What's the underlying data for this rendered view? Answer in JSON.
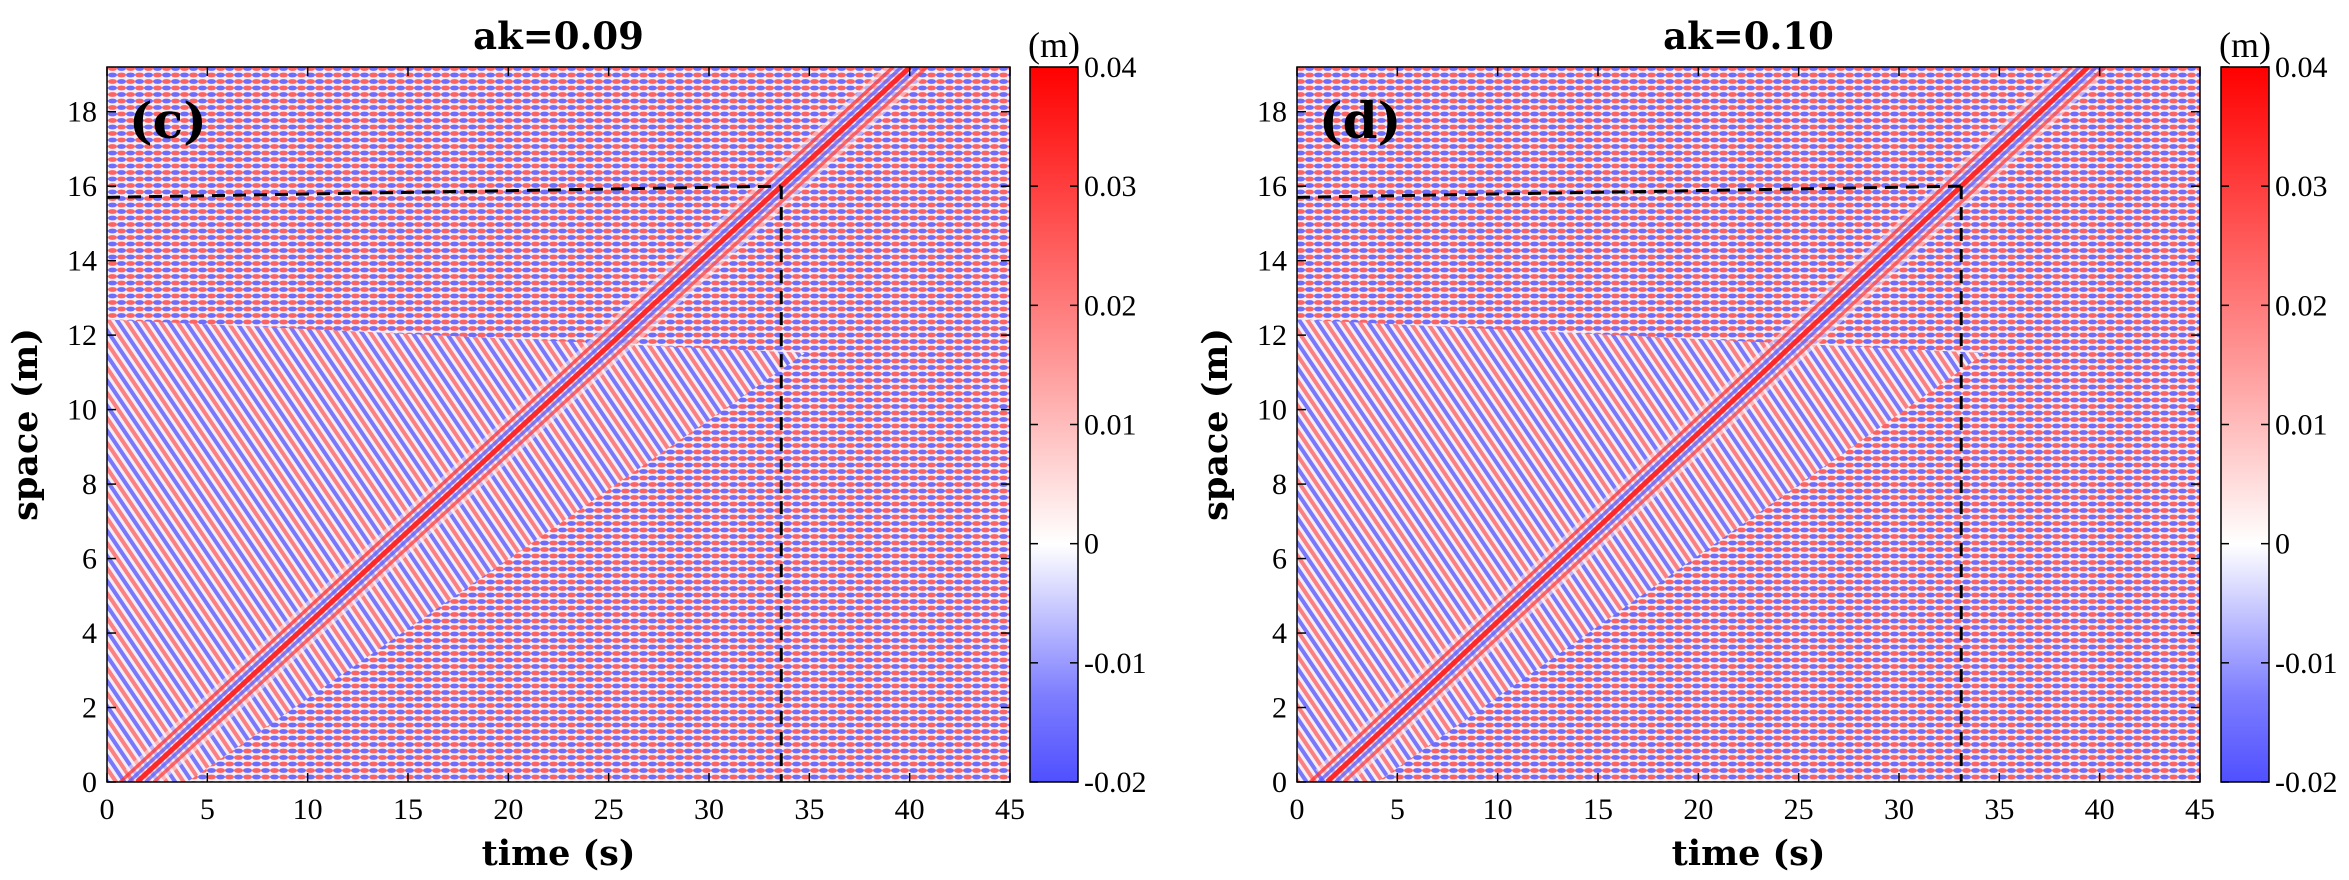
{
  "chart_data": [
    {
      "type": "heatmap",
      "panel_label": "(c)",
      "title": "ak=0.09",
      "xlabel": "time (s)",
      "ylabel": "space (m)",
      "xlim": [
        0,
        45
      ],
      "ylim": [
        0,
        19.2
      ],
      "x_ticks": [
        "0",
        "5",
        "10",
        "15",
        "20",
        "25",
        "30",
        "35",
        "40",
        "45"
      ],
      "y_ticks": [
        "0",
        "2",
        "4",
        "6",
        "8",
        "10",
        "12",
        "14",
        "16",
        "18"
      ],
      "colorbar": {
        "unit": "(m)",
        "range": [
          -0.02,
          0.04
        ],
        "ticks": [
          "-0.02",
          "-0.01",
          "0",
          "0.01",
          "0.02",
          "0.03",
          "0.04"
        ]
      },
      "focus_line": {
        "t": 33.6,
        "x": 16.0
      },
      "reference_y": 15.7
    },
    {
      "type": "heatmap",
      "panel_label": "(d)",
      "title": "ak=0.10",
      "xlabel": "time (s)",
      "ylabel": "space (m)",
      "xlim": [
        0,
        45
      ],
      "ylim": [
        0,
        19.2
      ],
      "x_ticks": [
        "0",
        "5",
        "10",
        "15",
        "20",
        "25",
        "30",
        "35",
        "40",
        "45"
      ],
      "y_ticks": [
        "0",
        "2",
        "4",
        "6",
        "8",
        "10",
        "12",
        "14",
        "16",
        "18"
      ],
      "colorbar": {
        "unit": "(m)",
        "range": [
          -0.02,
          0.04
        ],
        "ticks": [
          "-0.02",
          "-0.01",
          "0",
          "0.01",
          "0.02",
          "0.03",
          "0.04"
        ]
      },
      "focus_line": {
        "t": 33.1,
        "x": 16.0
      },
      "reference_y": 15.7
    }
  ],
  "colors": {
    "positive": "#ff0000",
    "zero": "#ffffff",
    "negative": "#4b4bff",
    "frame": "#000000"
  }
}
